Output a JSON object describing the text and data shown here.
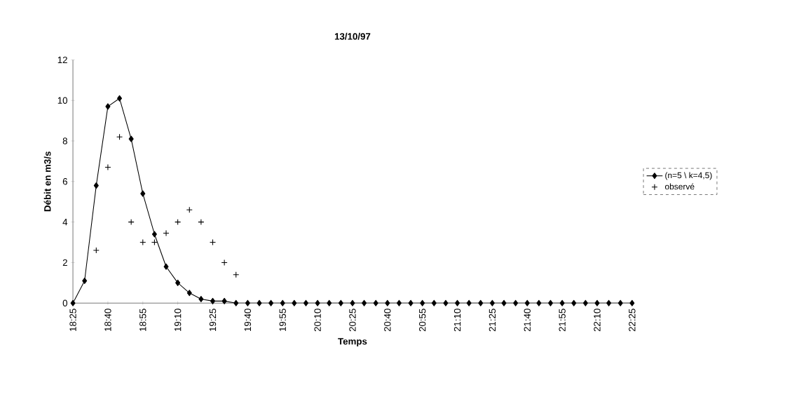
{
  "chart_data": {
    "type": "line",
    "title": "13/10/97",
    "xlabel": "Temps",
    "ylabel": "Débit en m3/s",
    "categories": [
      "18:25",
      null,
      null,
      "18:40",
      null,
      null,
      "18:55",
      null,
      null,
      "19:10",
      null,
      null,
      "19:25",
      null,
      null,
      "19:40",
      null,
      null,
      "19:55",
      null,
      null,
      "20:10",
      null,
      null,
      "20:25",
      null,
      null,
      "20:40",
      null,
      null,
      "20:55",
      null,
      null,
      "21:10",
      null,
      null,
      "21:25",
      null,
      null,
      "21:40",
      null,
      null,
      "21:55",
      null,
      null,
      "22:10",
      null,
      null,
      "22:25"
    ],
    "ylim": [
      0,
      12
    ],
    "yticks": [
      0,
      2,
      4,
      6,
      8,
      10,
      12
    ],
    "legend": "right",
    "series": [
      {
        "name": "(n=5 \\ k=4,5)",
        "marker": "diamond",
        "color": "#000000",
        "values": [
          0,
          1.1,
          5.8,
          9.7,
          10.1,
          8.1,
          5.4,
          3.4,
          1.8,
          1.0,
          0.5,
          0.2,
          0.1,
          0.1,
          0,
          0,
          0,
          0,
          0,
          0,
          0,
          0,
          0,
          0,
          0,
          0,
          0,
          0,
          0,
          0,
          0,
          0,
          0,
          0,
          0,
          0,
          0,
          0,
          0,
          0,
          0,
          0,
          0,
          0,
          0,
          0,
          0,
          0,
          0
        ]
      },
      {
        "name": "observé",
        "type": "scatter",
        "marker": "cross",
        "color": "#000000",
        "values": [
          null,
          null,
          2.6,
          6.7,
          8.2,
          4.0,
          3.0,
          3.0,
          3.45,
          4.0,
          4.6,
          4.0,
          3.0,
          2.0,
          1.4,
          null,
          null,
          null,
          null,
          null,
          null,
          null,
          null,
          null,
          null,
          null,
          null,
          null,
          null,
          null,
          null,
          null,
          null,
          null,
          null,
          null,
          null,
          null,
          null,
          null,
          null,
          null,
          null,
          null,
          null,
          null,
          null,
          null,
          null
        ]
      }
    ]
  }
}
